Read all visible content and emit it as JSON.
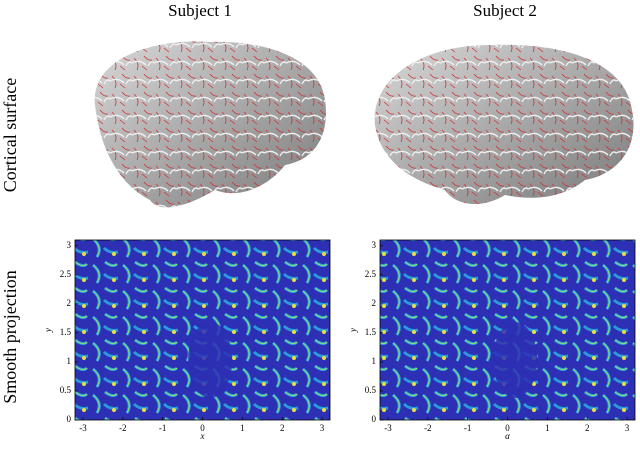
{
  "columns": [
    "Subject 1",
    "Subject 2"
  ],
  "rows": [
    "Cortical surface",
    "Smooth projection"
  ],
  "chart_data": [
    {
      "type": "heatmap",
      "xlabel": "x",
      "ylabel": "y",
      "xlim": [
        -3.2,
        3.2
      ],
      "ylim": [
        0,
        3.1
      ],
      "xticks": [
        -3,
        -2,
        -1,
        0,
        1,
        2,
        3
      ],
      "yticks": [
        0,
        0.5,
        1,
        1.5,
        2,
        2.5,
        3
      ]
    },
    {
      "type": "heatmap",
      "xlabel": "α",
      "ylabel": "y",
      "xlim": [
        -3.2,
        3.2
      ],
      "ylim": [
        0,
        3.1
      ],
      "xticks": [
        -3,
        -2,
        -1,
        0,
        1,
        2,
        3
      ],
      "yticks": [
        0,
        0.5,
        1,
        1.5,
        2,
        2.5,
        3
      ]
    }
  ]
}
